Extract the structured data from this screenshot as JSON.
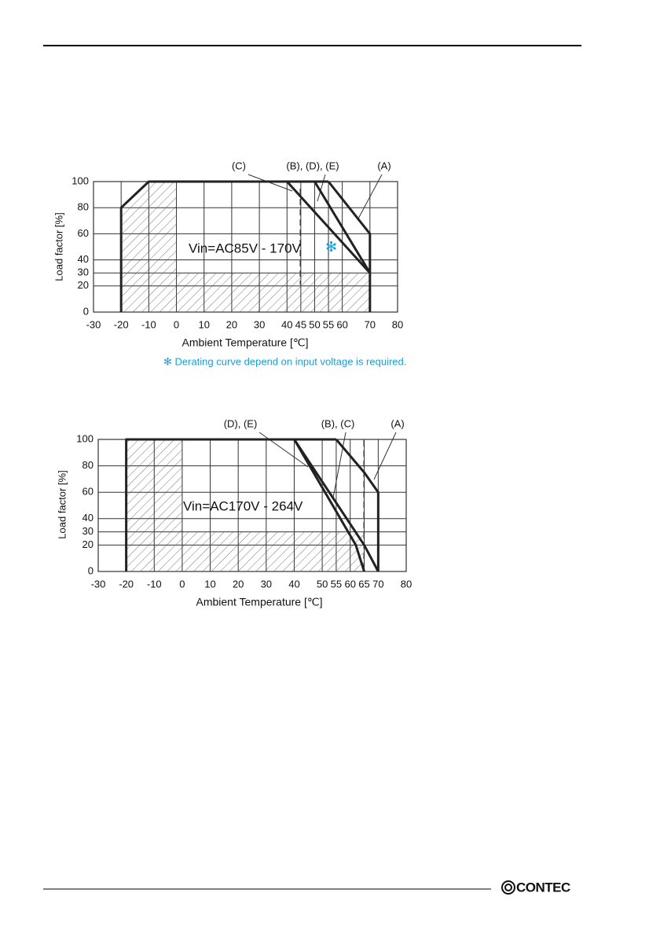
{
  "chart_data": [
    {
      "type": "line",
      "annotation": "Vin=AC85V - 170V",
      "marker": "✻",
      "footnote": "✻ Derating curve depend on input voltage is required.",
      "xlabel": "Ambient Temperature [℃]",
      "ylabel": "Load factor [%]",
      "xlim": [
        -30,
        80
      ],
      "ylim": [
        0,
        100
      ],
      "xticks": [
        -30,
        -20,
        -10,
        0,
        10,
        20,
        30,
        40,
        45,
        50,
        55,
        60,
        70,
        80
      ],
      "yticks": [
        0,
        20,
        30,
        40,
        60,
        80,
        100
      ],
      "grid": true,
      "series": [
        {
          "color": "#222222",
          "x": [
            -20,
            -20,
            -10,
            55
          ],
          "values": [
            0,
            80,
            100,
            100
          ]
        },
        {
          "name": "(C)",
          "color": "#222222",
          "x": [
            40,
            70
          ],
          "values": [
            100,
            30
          ]
        },
        {
          "name": "(B), (D), (E)",
          "color": "#222222",
          "x": [
            50,
            70
          ],
          "values": [
            100,
            30
          ]
        },
        {
          "name": "(A)",
          "color": "#222222",
          "x": [
            55,
            70,
            70
          ],
          "values": [
            100,
            60,
            0
          ]
        }
      ]
    },
    {
      "type": "line",
      "annotation": "Vin=AC170V - 264V",
      "xlabel": "Ambient Temperature [℃]",
      "ylabel": "Load factor [%]",
      "xlim": [
        -30,
        80
      ],
      "ylim": [
        0,
        100
      ],
      "xticks": [
        -30,
        -20,
        -10,
        0,
        10,
        20,
        30,
        40,
        50,
        55,
        60,
        65,
        70,
        80
      ],
      "yticks": [
        0,
        20,
        30,
        40,
        60,
        80,
        100
      ],
      "grid": true,
      "series": [
        {
          "color": "#222222",
          "x": [
            -20,
            -20,
            55
          ],
          "values": [
            0,
            100,
            100
          ]
        },
        {
          "name": "(D), (E)",
          "color": "#222222",
          "x": [
            40,
            62,
            65
          ],
          "values": [
            100,
            20,
            0
          ]
        },
        {
          "name": "(B), (C)",
          "color": "#222222",
          "x": [
            40,
            65,
            70
          ],
          "values": [
            100,
            20,
            0
          ]
        },
        {
          "name": "(A)",
          "color": "#222222",
          "x": [
            55,
            65,
            70,
            70
          ],
          "values": [
            100,
            75,
            60,
            0
          ]
        }
      ]
    }
  ],
  "footer": {
    "logo": "CONTEC"
  }
}
